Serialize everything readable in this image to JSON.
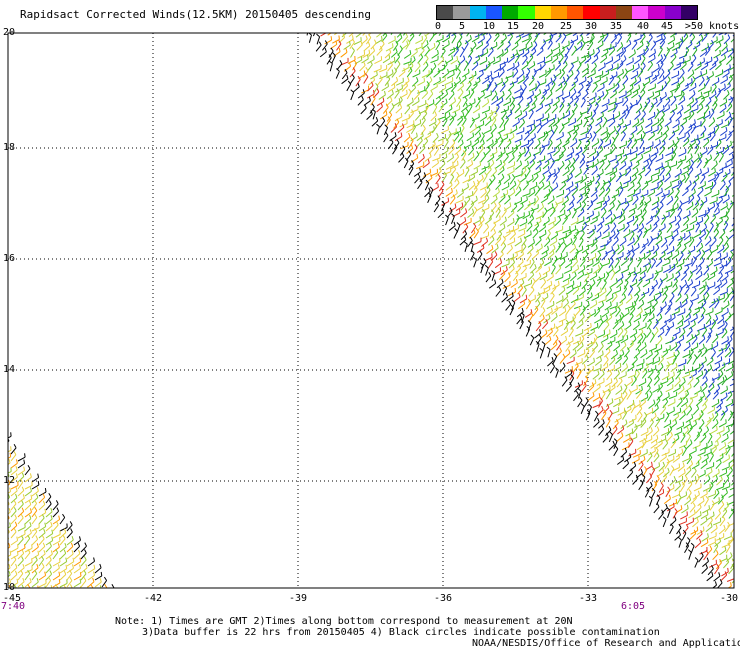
{
  "title": "Rapidsact Corrected Winds(12.5KM) 20150405 descending",
  "scale": {
    "colors": [
      "#4a4a4a",
      "#9a9a9a",
      "#00b4f0",
      "#1a56ff",
      "#00aa00",
      "#33ff00",
      "#ffd700",
      "#ff9900",
      "#ff5500",
      "#ff0000",
      "#c81e1e",
      "#8b4513",
      "#ff55ff",
      "#cc00cc",
      "#8800cc",
      "#330066"
    ],
    "labels": [
      "0",
      "5",
      "10",
      "15",
      "20",
      "25",
      "30",
      "35",
      "40",
      "45",
      ">50 knots"
    ]
  },
  "axes": {
    "lat_ticks": [
      "20",
      "18",
      "16",
      "14",
      "12",
      "10"
    ],
    "lon_ticks": [
      "-45",
      "-42",
      "-39",
      "-36",
      "-33",
      "-30"
    ]
  },
  "times": [
    "7:40",
    "6:05"
  ],
  "notes": [
    "Note: 1) Times are GMT 2)Times along bottom correspond to measurement at 20N",
    "3)Data buffer is 22 hrs from 20150405 4) Black circles indicate possible contamination"
  ],
  "credit": "NOAA/NESDIS/Office of Research and Applications"
}
